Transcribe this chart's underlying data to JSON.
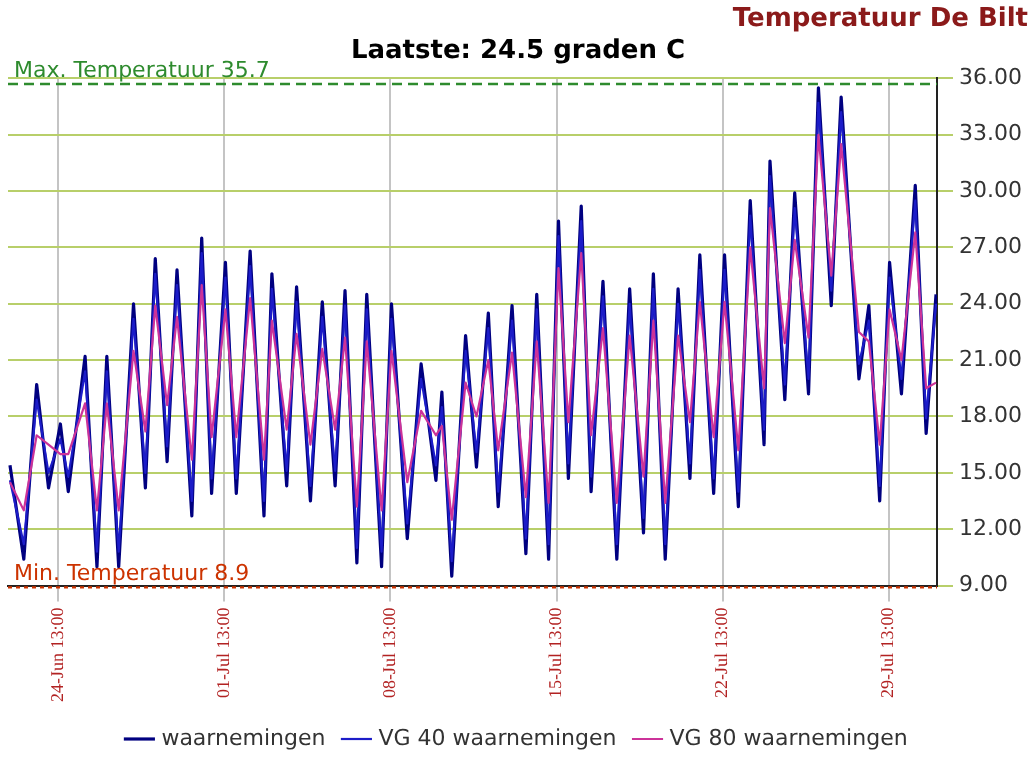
{
  "chart_data": {
    "type": "line",
    "title": "Temperatuur De Bilt",
    "subtitle": "Laatste: 24.5 graden C",
    "x": [
      "--06-22T12:00",
      "--06-23T02:00",
      "--06-23T15:00",
      "--06-24T03:00",
      "--06-24T15:00",
      "--06-24T23:00",
      "--06-25T16:00",
      "--06-26T04:00",
      "--06-26T14:00",
      "--06-27T02:00",
      "--06-27T17:00",
      "--06-28T05:00",
      "--06-28T15:00",
      "--06-29T03:00",
      "--06-29T13:00",
      "--06-30T04:00",
      "--06-30T14:00",
      "--07-01T00:00",
      "--07-01T14:00",
      "--07-02T01:00",
      "--07-02T15:00",
      "--07-03T05:00",
      "--07-03T13:00",
      "--07-04T04:00",
      "--07-04T14:00",
      "--07-05T04:00",
      "--07-05T16:00",
      "--07-06T05:00",
      "--07-06T15:00",
      "--07-07T03:00",
      "--07-07T13:00",
      "--07-08T04:00",
      "--07-08T14:00",
      "--07-09T06:00",
      "--07-09T20:00",
      "--07-10T11:00",
      "--07-10T17:00",
      "--07-11T03:00",
      "--07-11T17:00",
      "--07-12T04:00",
      "--07-12T16:00",
      "--07-13T02:00",
      "--07-13T16:00",
      "--07-14T06:00",
      "--07-14T17:00",
      "--07-15T05:00",
      "--07-15T15:00",
      "--07-16T01:00",
      "--07-16T14:00",
      "--07-17T00:00",
      "--07-17T12:00",
      "--07-18T02:00",
      "--07-18T15:00",
      "--07-19T05:00",
      "--07-19T15:00",
      "--07-20T03:00",
      "--07-20T16:00",
      "--07-21T04:00",
      "--07-21T14:00",
      "--07-22T04:00",
      "--07-22T15:00",
      "--07-23T05:00",
      "--07-23T17:00",
      "--07-24T07:00",
      "--07-24T13:00",
      "--07-25T04:00",
      "--07-25T14:00",
      "--07-26T04:00",
      "--07-26T14:00",
      "--07-27T03:00",
      "--07-27T13:00",
      "--07-28T07:00",
      "--07-28T17:00",
      "--07-29T04:00",
      "--07-29T14:00",
      "--07-30T02:00",
      "--07-30T16:00",
      "--07-31T03:00",
      "--07-31T13:00"
    ],
    "series": [
      {
        "name": "waarnemingen",
        "color": "#000080",
        "values": [
          15.4,
          10.4,
          19.7,
          14.2,
          17.6,
          14,
          21.2,
          10.0,
          21.2,
          10,
          24,
          14.2,
          26.4,
          15.6,
          25.8,
          12.7,
          27.5,
          13.9,
          26.2,
          13.9,
          26.8,
          12.7,
          25.6,
          14.3,
          24.9,
          13.5,
          24.1,
          14.3,
          24.7,
          10.2,
          24.5,
          10.0,
          24.0,
          11.5,
          20.8,
          14.6,
          19.3,
          9.5,
          22.3,
          15.3,
          23.5,
          13.2,
          23.9,
          10.7,
          24.5,
          10.4,
          28.4,
          14.7,
          29.2,
          14,
          25.2,
          10.4,
          24.8,
          11.8,
          25.6,
          10.4,
          24.8,
          14.7,
          26.6,
          13.9,
          26.6,
          13.2,
          29.5,
          16.5,
          31.6,
          18.9,
          29.9,
          19.2,
          35.5,
          23.9,
          35.0,
          20.0,
          23.9,
          13.5,
          26.2,
          19.2,
          30.3,
          17.1,
          24.5
        ]
      },
      {
        "name": "VG 40 waarnemingen",
        "color": "#1c1cc8",
        "values": [
          14.6,
          11.2,
          18.9,
          15.0,
          16.8,
          14.8,
          20.4,
          10.8,
          20.4,
          10.8,
          23.2,
          15.0,
          25.6,
          16.4,
          25.0,
          13.5,
          26.7,
          14.7,
          25.4,
          14.7,
          26.0,
          13.5,
          24.8,
          15.1,
          24.1,
          14.3,
          23.3,
          15.1,
          23.9,
          11.0,
          23.7,
          10.8,
          23.2,
          12.3,
          20.0,
          15.4,
          18.5,
          10.3,
          21.5,
          16.1,
          22.7,
          14.0,
          23.1,
          11.5,
          23.7,
          11.2,
          27.6,
          15.5,
          28.4,
          14.8,
          24.4,
          11.2,
          24.0,
          12.6,
          24.8,
          11.2,
          24.0,
          15.5,
          25.8,
          14.7,
          25.8,
          14.0,
          28.7,
          17.3,
          30.8,
          19.7,
          29.1,
          20.0,
          34.7,
          24.7,
          34.2,
          20.8,
          23.1,
          14.3,
          25.4,
          20.0,
          29.5,
          17.9,
          24.0
        ]
      },
      {
        "name": "VG 80 waarnemingen",
        "color": "#cc3399",
        "values": [
          14.5,
          13.0,
          17.0,
          16.5,
          16.0,
          16.0,
          18.7,
          13.0,
          18.7,
          13.0,
          21.5,
          17.2,
          23.9,
          18.6,
          23.3,
          15.7,
          25.0,
          16.9,
          23.7,
          16.9,
          24.3,
          15.7,
          23.1,
          17.3,
          22.4,
          16.5,
          21.6,
          17.3,
          22.2,
          13.2,
          22.0,
          13.0,
          21.5,
          14.5,
          18.3,
          17.0,
          17.5,
          12.5,
          19.8,
          18.0,
          21.0,
          16.2,
          21.4,
          13.7,
          22.0,
          13.4,
          25.9,
          17.7,
          26.7,
          17.0,
          22.7,
          13.4,
          22.3,
          14.8,
          23.1,
          13.4,
          22.3,
          17.7,
          24.1,
          16.9,
          24.1,
          16.2,
          27.0,
          19.5,
          29.1,
          21.9,
          27.4,
          22.2,
          33.0,
          25.5,
          32.5,
          22.5,
          22.0,
          16.5,
          23.7,
          21.0,
          27.8,
          19.5,
          19.8
        ]
      }
    ],
    "xlim": [
      "--06-22T10:00",
      "--07-31T14:00"
    ],
    "xticks": [
      {
        "value": "--06-24T13:00",
        "label": "24-Jun 13:00"
      },
      {
        "value": "--07-01T13:00",
        "label": "01-Jul 13:00"
      },
      {
        "value": "--07-08T13:00",
        "label": "08-Jul 13:00"
      },
      {
        "value": "--07-15T13:00",
        "label": "15-Jul 13:00"
      },
      {
        "value": "--07-22T13:00",
        "label": "22-Jul 13:00"
      },
      {
        "value": "--07-29T13:00",
        "label": "29-Jul 13:00"
      }
    ],
    "ylim": [
      9,
      36
    ],
    "yticks": [
      {
        "value": 9,
        "label": "9.00"
      },
      {
        "value": 12,
        "label": "12.00"
      },
      {
        "value": 15,
        "label": "15.00"
      },
      {
        "value": 18,
        "label": "18.00"
      },
      {
        "value": 21,
        "label": "21.00"
      },
      {
        "value": 24,
        "label": "24.00"
      },
      {
        "value": 27,
        "label": "27.00"
      },
      {
        "value": 30,
        "label": "30.00"
      },
      {
        "value": 33,
        "label": "33.00"
      },
      {
        "value": 36,
        "label": "36.00"
      }
    ],
    "ref_lines": [
      {
        "axis": "y",
        "value": 35.7,
        "label": "Max. Temperatuur 35.7",
        "color": "#2e8b2e",
        "line_style": "dashed"
      },
      {
        "axis": "y",
        "value": 8.9,
        "label": "Min. Temperatuur 8.9",
        "color": "#cc3300",
        "line_style": "dotted"
      }
    ],
    "grid": true,
    "legend": "bottom",
    "marker": "none",
    "line_style": "solid"
  }
}
